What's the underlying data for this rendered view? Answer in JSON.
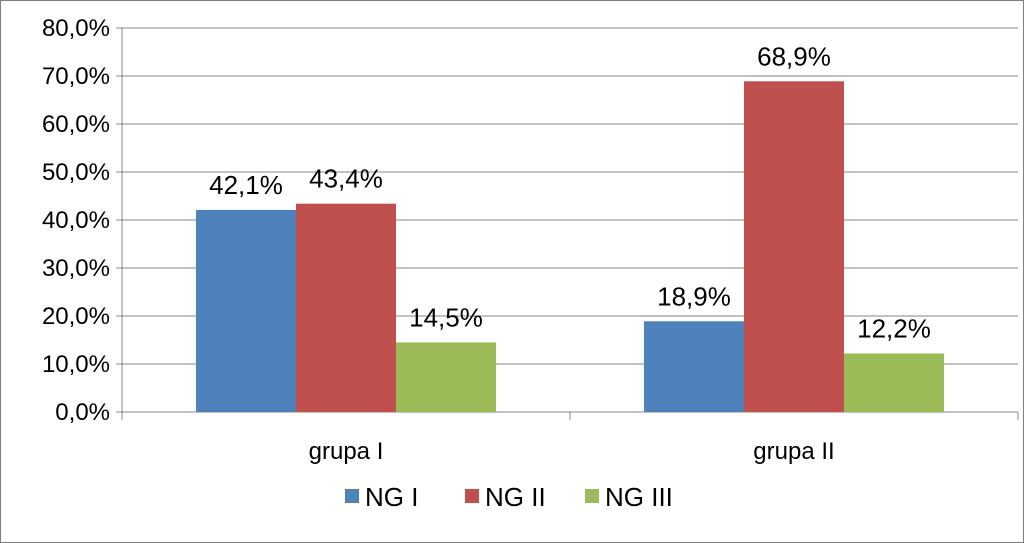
{
  "chart_data": {
    "type": "bar",
    "title": "",
    "xlabel": "",
    "ylabel": "",
    "categories": [
      "grupa I",
      "grupa II"
    ],
    "series": [
      {
        "name": "NG I",
        "values": [
          42.1,
          18.9
        ],
        "labels": [
          "42,1%",
          "18,9%"
        ],
        "color": "#4f81bd"
      },
      {
        "name": "NG II",
        "values": [
          43.4,
          68.9
        ],
        "labels": [
          "43,4%",
          "68,9%"
        ],
        "color": "#c0504d"
      },
      {
        "name": "NG III",
        "values": [
          14.5,
          12.2
        ],
        "labels": [
          "14,5%",
          "12,2%"
        ],
        "color": "#9bbb59"
      }
    ],
    "ylim": [
      0,
      80
    ],
    "yticks": [
      0,
      10,
      20,
      30,
      40,
      50,
      60,
      70,
      80
    ],
    "ytick_labels": [
      "0,0%",
      "10,0%",
      "20,0%",
      "30,0%",
      "40,0%",
      "50,0%",
      "60,0%",
      "70,0%",
      "80,0%"
    ],
    "grid": true,
    "legend_position": "bottom"
  }
}
